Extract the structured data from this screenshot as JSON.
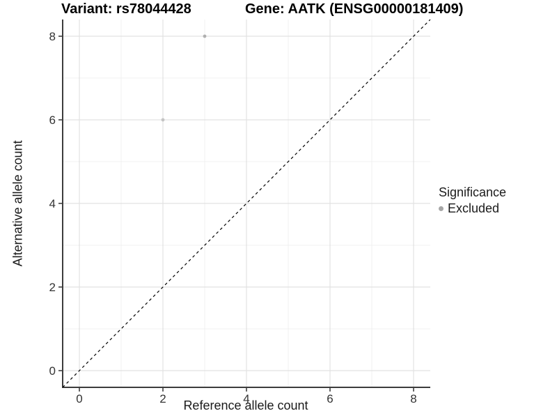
{
  "header": {
    "title_left": "Variant: rs78044428",
    "title_right": "Gene: AATK (ENSG00000181409)"
  },
  "chart_data": {
    "type": "scatter",
    "title_left": "Variant: rs78044428",
    "title_right": "Gene: AATK (ENSG00000181409)",
    "xlabel": "Reference allele count",
    "ylabel": "Alternative allele count",
    "xlim": [
      -0.4,
      8.4
    ],
    "ylim": [
      -0.4,
      8.4
    ],
    "x_ticks": [
      0,
      2,
      4,
      6,
      8
    ],
    "y_ticks": [
      0,
      2,
      4,
      6,
      8
    ],
    "x_minor_ticks": [
      1,
      3,
      5,
      7
    ],
    "y_minor_ticks": [
      1,
      3,
      5,
      7
    ],
    "grid": true,
    "identity_line": {
      "style": "dashed",
      "from": [
        -0.4,
        -0.4
      ],
      "to": [
        8.4,
        8.4
      ],
      "color": "#000000"
    },
    "series": [
      {
        "name": "Excluded",
        "points": [
          {
            "x": 2,
            "y": 6,
            "color": "#c4c4c4"
          },
          {
            "x": 3,
            "y": 8,
            "color": "#b0b0b0"
          }
        ]
      }
    ],
    "legend": {
      "title": "Significance",
      "position": "right",
      "entries": [
        {
          "label": "Excluded",
          "color": "#a6a6a6",
          "marker": "dot"
        }
      ]
    },
    "colors": {
      "background": "#ffffff",
      "grid_major": "#e2e2e2",
      "grid_minor": "#f0f0f0",
      "axis_line": "#3c3c3c",
      "tick_mark": "#333333",
      "tick_label": "#333333"
    }
  }
}
